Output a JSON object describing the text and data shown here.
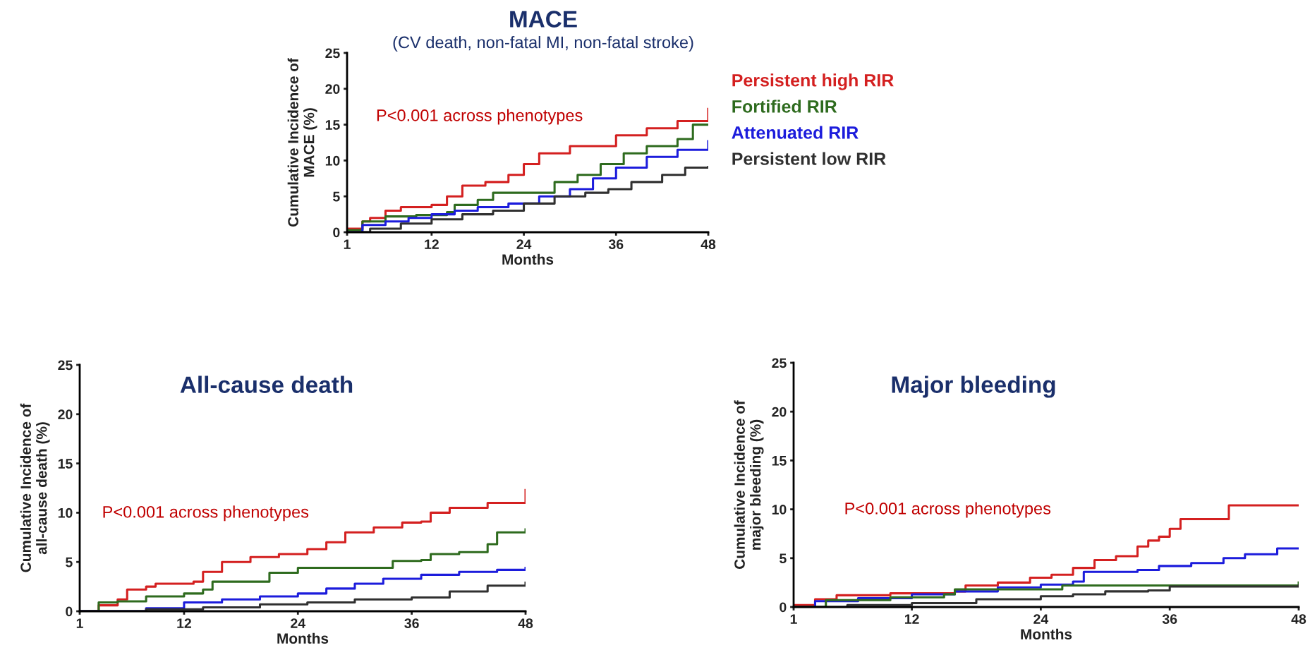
{
  "chart_data": [
    {
      "type": "step",
      "title": "MACE",
      "subtitle": "(CV death, non-fatal MI, non-fatal stroke)",
      "xlabel": "Months",
      "ylabel": "Cumulative Incidence of\nMACE (%)",
      "xlim": [
        1,
        48
      ],
      "xticks": [
        1,
        12,
        24,
        36,
        48
      ],
      "ylim": [
        0,
        25
      ],
      "yticks": [
        0,
        5,
        10,
        15,
        20,
        25
      ],
      "grid": false,
      "legend": "right",
      "annotations": [
        "P<0.001 across phenotypes"
      ],
      "series": [
        {
          "name": "Persistent high RIR",
          "color": "#d42020",
          "x": [
            1,
            3,
            4,
            6,
            8,
            12,
            14,
            16,
            19,
            22,
            24,
            26,
            30,
            36,
            40,
            44,
            48
          ],
          "values": [
            0.5,
            1.5,
            2,
            3,
            3.5,
            3.8,
            5,
            6.5,
            7,
            8,
            9.5,
            11,
            12,
            13.5,
            14.5,
            15.5,
            17.2
          ]
        },
        {
          "name": "Fortified RIR",
          "color": "#2e6b1e",
          "x": [
            1,
            3,
            6,
            10,
            14,
            15,
            18,
            20,
            25,
            28,
            31,
            34,
            37,
            40,
            44,
            46,
            48
          ],
          "values": [
            0.3,
            1.5,
            2.2,
            2.4,
            2.8,
            3.8,
            4.5,
            5.5,
            5.5,
            7,
            8,
            9.5,
            11,
            12,
            13,
            15,
            15
          ]
        },
        {
          "name": "Attenuated RIR",
          "color": "#1c1cdc",
          "x": [
            1,
            3,
            6,
            9,
            12,
            15,
            18,
            22,
            26,
            30,
            33,
            36,
            40,
            44,
            48
          ],
          "values": [
            0,
            1,
            1.5,
            2,
            2.5,
            3,
            3.5,
            4,
            5,
            6,
            7.5,
            9,
            10.5,
            11.5,
            12.7
          ]
        },
        {
          "name": "Persistent low RIR",
          "color": "#303030",
          "x": [
            1,
            4,
            8,
            12,
            16,
            20,
            24,
            28,
            32,
            35,
            38,
            42,
            45,
            48
          ],
          "values": [
            0,
            0.5,
            1.2,
            1.8,
            2.5,
            3,
            4,
            5,
            5.5,
            6,
            7,
            8,
            9,
            9.1
          ]
        }
      ]
    },
    {
      "type": "step",
      "title": "All-cause death",
      "xlabel": "Months",
      "ylabel": "Cumulative Incidence of\nall-cause death (%)",
      "xlim": [
        1,
        48
      ],
      "xticks": [
        1,
        12,
        24,
        36,
        48
      ],
      "ylim": [
        0,
        25
      ],
      "yticks": [
        0,
        5,
        10,
        15,
        20,
        25
      ],
      "grid": false,
      "annotations": [
        "P<0.001 across phenotypes"
      ],
      "series": [
        {
          "color": "#d42020",
          "x": [
            1,
            3,
            5,
            6,
            8,
            9,
            13,
            14,
            16,
            19,
            22,
            25,
            27,
            29,
            32,
            35,
            37,
            38,
            40,
            44,
            48
          ],
          "values": [
            0,
            0.6,
            1.2,
            2.2,
            2.5,
            2.8,
            3,
            4,
            5,
            5.5,
            5.8,
            6.3,
            7,
            8,
            8.5,
            9,
            9.1,
            10,
            10.5,
            11,
            12.3
          ]
        },
        {
          "color": "#2e6b1e",
          "x": [
            1,
            3,
            5,
            8,
            12,
            14,
            15,
            20,
            21,
            24,
            33,
            34,
            37,
            38,
            41,
            44,
            45,
            48
          ],
          "values": [
            0,
            0.9,
            1,
            1.5,
            1.8,
            2.2,
            3,
            3,
            3.9,
            4.4,
            4.4,
            5.1,
            5.2,
            5.8,
            6,
            6.8,
            8,
            8.3
          ]
        },
        {
          "color": "#1c1cdc",
          "x": [
            1,
            8,
            12,
            16,
            20,
            24,
            27,
            30,
            33,
            37,
            41,
            45,
            48
          ],
          "values": [
            0,
            0.3,
            0.9,
            1.2,
            1.5,
            1.8,
            2.3,
            2.8,
            3.3,
            3.7,
            4,
            4.2,
            4.4
          ]
        },
        {
          "color": "#303030",
          "x": [
            1,
            8,
            14,
            20,
            25,
            30,
            36,
            40,
            44,
            48
          ],
          "values": [
            0,
            0.2,
            0.4,
            0.7,
            0.9,
            1.2,
            1.4,
            2,
            2.6,
            2.9
          ]
        }
      ]
    },
    {
      "type": "step",
      "title": "Major bleeding",
      "xlabel": "Months",
      "ylabel": "Cumulative Incidence of\nmajor bleeding (%)",
      "xlim": [
        1,
        48
      ],
      "xticks": [
        1,
        12,
        24,
        36,
        48
      ],
      "ylim": [
        0,
        25
      ],
      "yticks": [
        0,
        5,
        10,
        15,
        20,
        25
      ],
      "grid": false,
      "annotations": [
        "P<0.001 across phenotypes"
      ],
      "series": [
        {
          "color": "#d42020",
          "x": [
            1,
            3,
            5,
            10,
            16,
            17,
            20,
            23,
            25,
            27,
            29,
            31,
            33,
            34,
            35,
            36,
            37,
            41,
            41.5,
            48
          ],
          "values": [
            0.2,
            0.8,
            1.2,
            1.4,
            1.6,
            2.2,
            2.5,
            3,
            3.3,
            4,
            4.8,
            5.2,
            6.2,
            6.8,
            7.2,
            8,
            9,
            9,
            10.4,
            10.4
          ]
        },
        {
          "color": "#1c1cdc",
          "x": [
            1,
            3,
            7,
            12,
            16,
            20,
            24,
            27,
            28,
            33,
            35,
            38,
            41,
            43,
            46,
            48
          ],
          "values": [
            0,
            0.6,
            0.9,
            1.3,
            1.6,
            2,
            2.3,
            2.6,
            3.6,
            3.8,
            4.2,
            4.5,
            5,
            5.4,
            6,
            6
          ]
        },
        {
          "color": "#2e6b1e",
          "x": [
            1,
            4,
            10,
            15,
            16,
            25,
            26,
            44,
            48
          ],
          "values": [
            0,
            0.7,
            1,
            1.3,
            1.8,
            1.8,
            2.2,
            2.2,
            2.5
          ]
        },
        {
          "color": "#303030",
          "x": [
            1,
            6,
            12,
            18,
            24,
            27,
            30,
            34,
            36,
            48
          ],
          "values": [
            0,
            0.2,
            0.4,
            0.8,
            1.1,
            1.3,
            1.6,
            1.7,
            2.1,
            2.2
          ]
        }
      ]
    }
  ]
}
